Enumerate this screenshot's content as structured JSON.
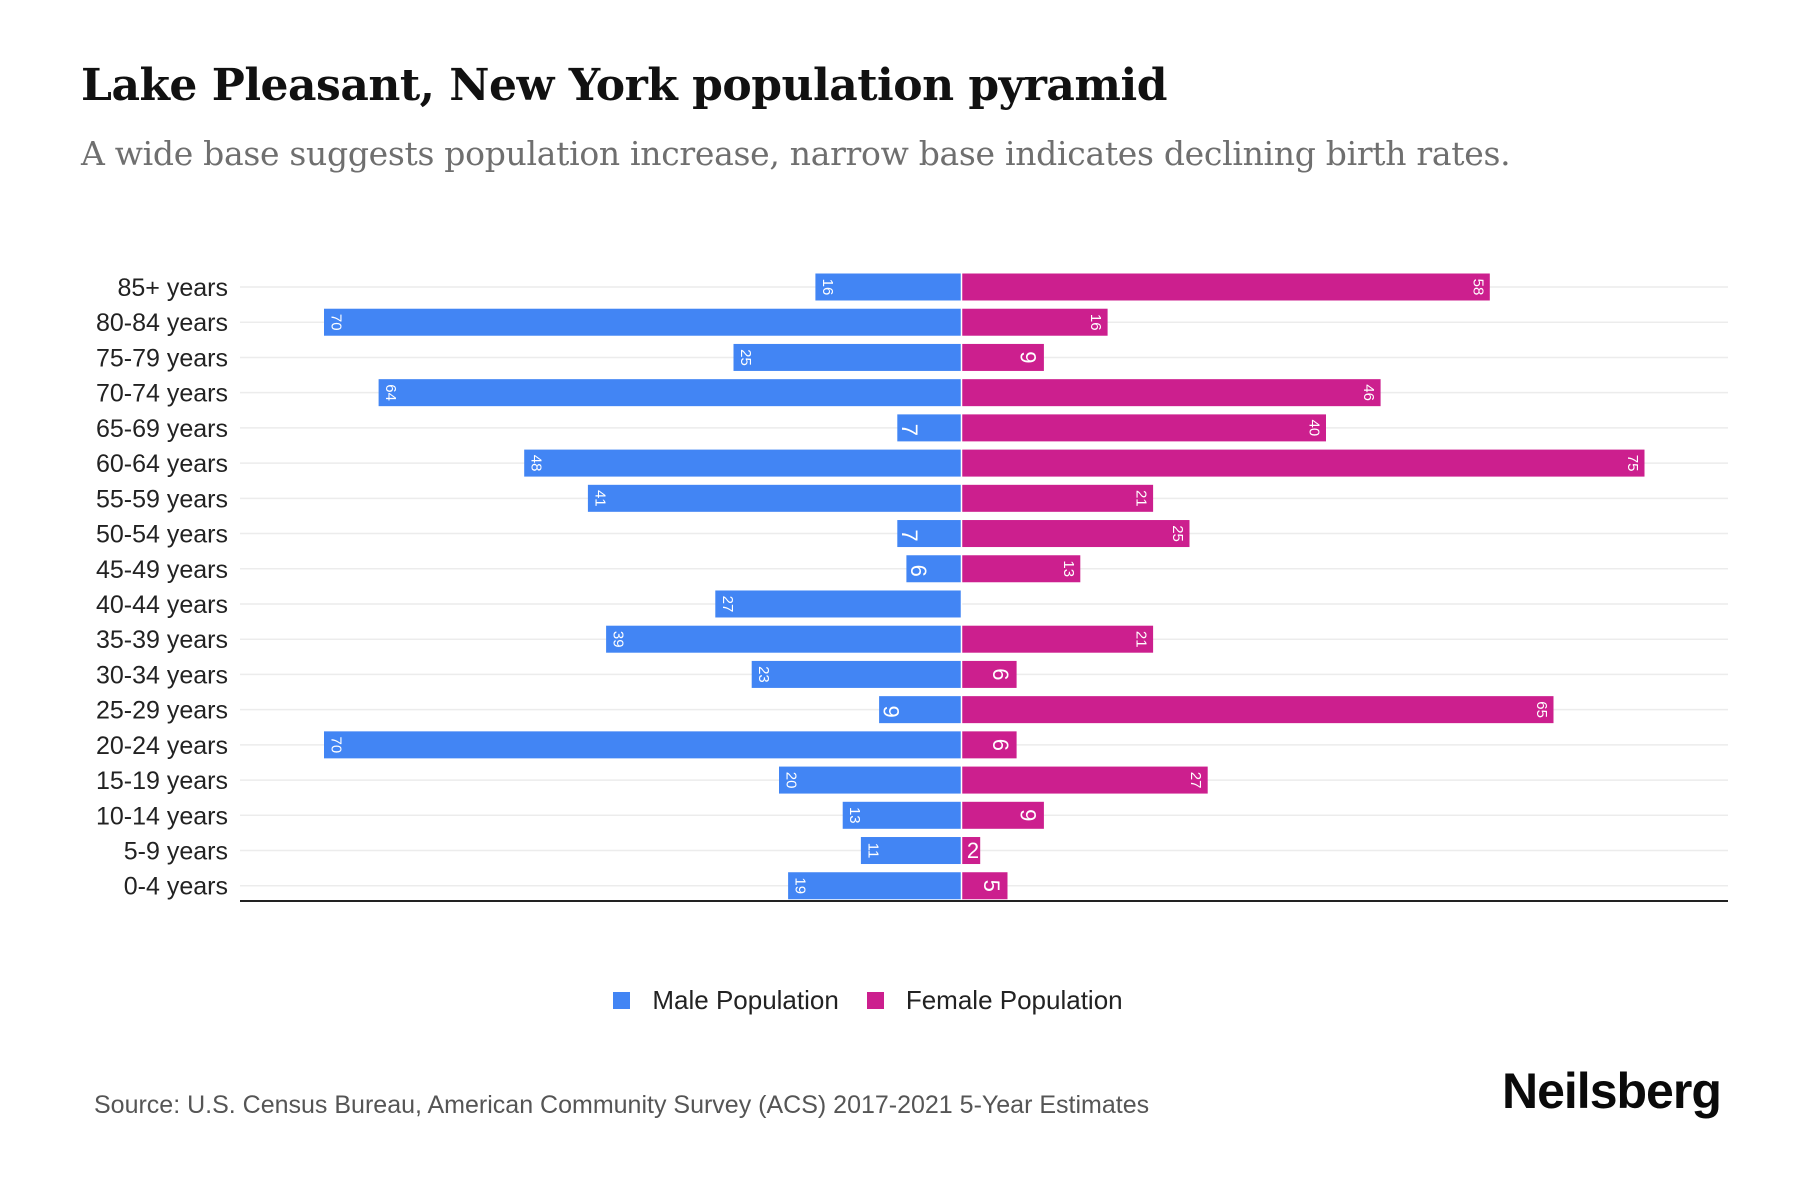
{
  "header": {
    "title": "Lake Pleasant, New York population pyramid",
    "subtitle": "A wide base suggests population increase, narrow base indicates declining birth rates."
  },
  "colors": {
    "male": "#4285f4",
    "female": "#cc1f8e",
    "grid": "#ececec",
    "axis": "#222222"
  },
  "chart_data": {
    "type": "bar",
    "orientation": "horizontal-diverging",
    "title": "Lake Pleasant, New York population pyramid",
    "subtitle": "A wide base suggests population increase, narrow base indicates declining birth rates.",
    "xlabel": "",
    "ylabel": "",
    "categories": [
      "85+ years",
      "80-84 years",
      "75-79 years",
      "70-74 years",
      "65-69 years",
      "60-64 years",
      "55-59 years",
      "50-54 years",
      "45-49 years",
      "40-44 years",
      "35-39 years",
      "30-34 years",
      "25-29 years",
      "20-24 years",
      "15-19 years",
      "10-14 years",
      "5-9 years",
      "0-4 years"
    ],
    "series": [
      {
        "name": "Male Population",
        "side": "left",
        "values": [
          16,
          70,
          25,
          64,
          7,
          48,
          41,
          7,
          6,
          27,
          39,
          23,
          9,
          70,
          20,
          13,
          11,
          19
        ]
      },
      {
        "name": "Female Population",
        "side": "right",
        "values": [
          58,
          16,
          9,
          46,
          40,
          75,
          21,
          25,
          13,
          0,
          21,
          6,
          65,
          6,
          27,
          9,
          2,
          5
        ]
      }
    ],
    "xlim": [
      -77,
      77
    ],
    "grid": true,
    "legend": "bottom-center",
    "data_labels": true
  },
  "legend": {
    "items": [
      {
        "label": "Male Population"
      },
      {
        "label": "Female Population"
      }
    ]
  },
  "footer": {
    "source": "Source: U.S. Census Bureau, American Community Survey (ACS) 2017-2021 5-Year Estimates",
    "brand": "Neilsberg"
  }
}
